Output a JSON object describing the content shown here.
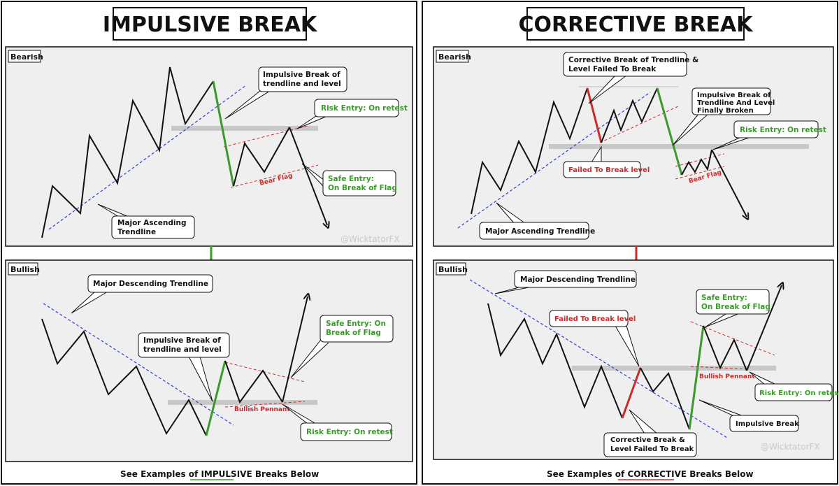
{
  "left": {
    "title": "IMPULSIVE BREAK",
    "bearish": {
      "label": "Bearish",
      "callout_break": [
        "Impulsive Break of",
        "trendline and level"
      ],
      "callout_risk": "Risk Entry: On retest",
      "callout_safe": [
        "Safe Entry:",
        "On Break of Flag"
      ],
      "flag_label": "Bear Flag",
      "callout_trendline": [
        "Major Ascending",
        "Trendline"
      ],
      "watermark": "@WicktatorFX"
    },
    "bullish": {
      "label": "Bullish",
      "callout_trendline": "Major Descending Trendline",
      "callout_break": [
        "Impulsive Break of",
        "trendline and level"
      ],
      "callout_safe": [
        "Safe Entry: On",
        "Break of Flag"
      ],
      "pennant_label": "Bullish Pennant",
      "callout_risk": "Risk Entry: On retest"
    },
    "caption": {
      "prefix": "See Examples of ",
      "highlight": "IMPULSIVE",
      "suffix": " Breaks Below"
    }
  },
  "right": {
    "title": "CORRECTIVE BREAK",
    "bearish": {
      "label": "Bearish",
      "callout_corrective": [
        "Corrective Break of Trendline &",
        "Level Failed To Break"
      ],
      "callout_impulsive": [
        "Impulsive Break of",
        "Trendline And Level",
        "Finally Broken"
      ],
      "callout_failed": "Failed To Break level",
      "callout_risk": "Risk Entry: On retest",
      "flag_label": "Bear Flag",
      "callout_trendline": "Major Ascending Trendline"
    },
    "bullish": {
      "label": "Bullish",
      "callout_trendline": "Major Descending Trendline",
      "callout_failed": "Failed To Break level",
      "callout_safe": [
        "Safe Entry:",
        "On Break of Flag"
      ],
      "pennant_label": "Bullish Pennant",
      "callout_risk": "Risk Entry: On retest",
      "callout_impulsive": "Impulsive Break",
      "callout_corrective": [
        "Corrective Break &",
        "Level Failed To Break"
      ],
      "watermark": "@WicktatorFX"
    },
    "caption": {
      "prefix": "See Examples of ",
      "highlight": "CORRECTIVE",
      "suffix": " Breaks Below"
    }
  },
  "colors": {
    "impulsive": "#3a9a2a",
    "corrective": "#cc2a2a",
    "trendline": "#2b3fd6",
    "level": "#c8c8c8",
    "panel": "#efefef"
  }
}
